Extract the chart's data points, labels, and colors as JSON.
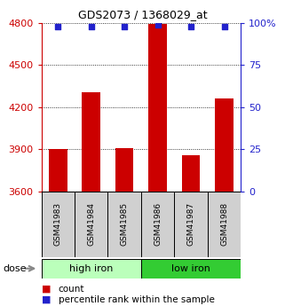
{
  "title": "GDS2073 / 1368029_at",
  "samples": [
    "GSM41983",
    "GSM41984",
    "GSM41985",
    "GSM41986",
    "GSM41987",
    "GSM41988"
  ],
  "bar_values": [
    3900,
    4305,
    3905,
    4790,
    3855,
    4260
  ],
  "percentile_values": [
    98,
    98,
    98,
    99,
    98,
    98
  ],
  "bar_color": "#cc0000",
  "dot_color": "#2222cc",
  "ylim_left": [
    3600,
    4800
  ],
  "ylim_right": [
    0,
    100
  ],
  "yticks_left": [
    3600,
    3900,
    4200,
    4500,
    4800
  ],
  "yticks_right": [
    0,
    25,
    50,
    75,
    100
  ],
  "ytick_labels_right": [
    "0",
    "25",
    "50",
    "75",
    "100%"
  ],
  "groups": [
    {
      "label": "high iron",
      "samples": [
        0,
        1,
        2
      ],
      "color": "#bbffbb"
    },
    {
      "label": "low iron",
      "samples": [
        3,
        4,
        5
      ],
      "color": "#33cc33"
    }
  ],
  "dose_label": "dose",
  "legend_count_label": "count",
  "legend_percentile_label": "percentile rank within the sample",
  "bar_width": 0.55,
  "left_tick_color": "#cc0000",
  "right_tick_color": "#2222cc",
  "grid_linestyle": "dotted",
  "sample_box_color": "#d0d0d0",
  "title_fontsize": 9,
  "tick_fontsize": 8,
  "label_fontsize": 7.5
}
